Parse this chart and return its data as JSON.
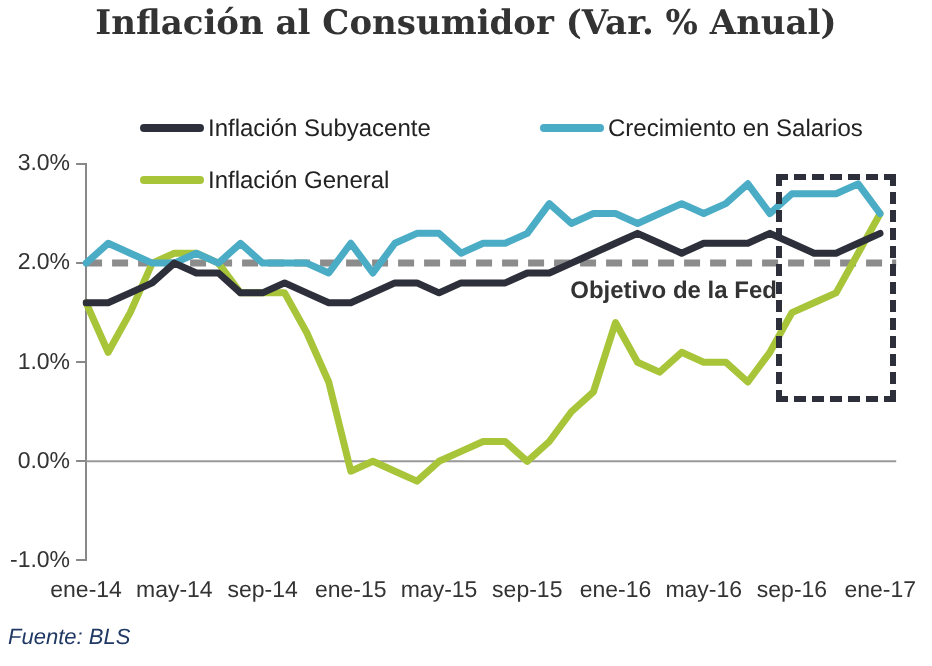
{
  "chart_data": {
    "type": "line",
    "title": "Inflación al Consumidor (Var. % Anual)",
    "categories": [
      "ene-14",
      null,
      null,
      null,
      "may-14",
      null,
      null,
      null,
      "sep-14",
      null,
      null,
      null,
      "ene-15",
      null,
      null,
      null,
      "may-15",
      null,
      null,
      null,
      "sep-15",
      null,
      null,
      null,
      "ene-16",
      null,
      null,
      null,
      "may-16",
      null,
      null,
      null,
      "sep-16",
      null,
      null,
      null,
      "ene-17"
    ],
    "series": [
      {
        "name": "Inflación Subyacente",
        "color": "#2d2f3a",
        "values": [
          1.6,
          1.6,
          1.7,
          1.8,
          2.0,
          1.9,
          1.9,
          1.7,
          1.7,
          1.8,
          1.7,
          1.6,
          1.6,
          1.7,
          1.8,
          1.8,
          1.7,
          1.8,
          1.8,
          1.8,
          1.9,
          1.9,
          2.0,
          2.1,
          2.2,
          2.3,
          2.2,
          2.1,
          2.2,
          2.2,
          2.2,
          2.3,
          2.2,
          2.1,
          2.1,
          2.2,
          2.3
        ]
      },
      {
        "name": "Crecimiento en Salarios",
        "color": "#4bacc6",
        "values": [
          2.0,
          2.2,
          2.1,
          2.0,
          2.0,
          2.1,
          2.0,
          2.2,
          2.0,
          2.0,
          2.0,
          1.9,
          2.2,
          1.9,
          2.2,
          2.3,
          2.3,
          2.1,
          2.2,
          2.2,
          2.3,
          2.6,
          2.4,
          2.5,
          2.5,
          2.4,
          2.5,
          2.6,
          2.5,
          2.6,
          2.8,
          2.5,
          2.7,
          2.7,
          2.7,
          2.8,
          2.5
        ]
      },
      {
        "name": "Inflación General",
        "color": "#a8c53a",
        "values": [
          1.6,
          1.1,
          1.5,
          2.0,
          2.1,
          2.1,
          2.0,
          1.7,
          1.7,
          1.7,
          1.3,
          0.8,
          -0.1,
          0.0,
          -0.1,
          -0.2,
          0.0,
          0.1,
          0.2,
          0.2,
          0.0,
          0.2,
          0.5,
          0.7,
          1.4,
          1.0,
          0.9,
          1.1,
          1.0,
          1.0,
          0.8,
          1.1,
          1.5,
          1.6,
          1.7,
          2.1,
          2.5
        ]
      }
    ],
    "ylim": [
      -1,
      3
    ],
    "yticks": [
      {
        "value": -1,
        "label": "-1.0%"
      },
      {
        "value": 0,
        "label": "0.0%"
      },
      {
        "value": 1,
        "label": "1.0%"
      },
      {
        "value": 2,
        "label": "2.0%"
      },
      {
        "value": 3,
        "label": "3.0%"
      }
    ],
    "ref_lines": [
      {
        "axis": "y",
        "value": 0,
        "color": "#999999",
        "line_style": "solid"
      },
      {
        "axis": "y",
        "value": 2,
        "label": "Objetivo de la Fed",
        "color": "#8c8c8c",
        "line_style": "dashed"
      }
    ],
    "annotations": [
      "Fuente: BLS"
    ],
    "grid": false,
    "legend": "top",
    "marker": "none",
    "line_style": "solid"
  }
}
